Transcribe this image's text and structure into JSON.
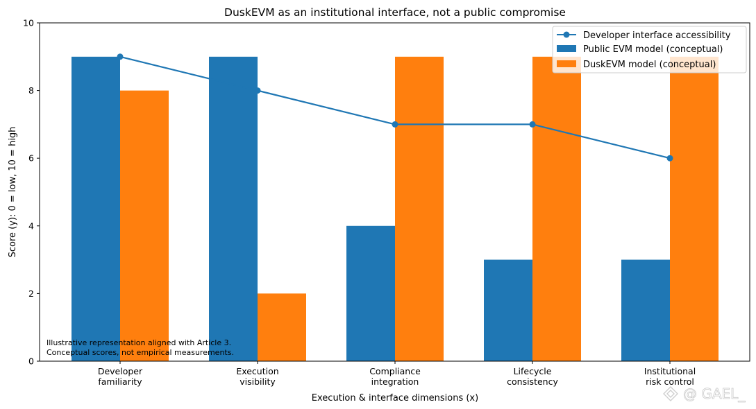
{
  "chart_data": {
    "type": "bar",
    "title": "DuskEVM as an institutional interface, not a public compromise",
    "xlabel": "Execution & interface dimensions (x)",
    "ylabel": "Score (y): 0 = low, 10 = high",
    "ylim": [
      0,
      10
    ],
    "yticks": [
      "0",
      "2",
      "4",
      "6",
      "8",
      "10"
    ],
    "categories": [
      [
        "Developer",
        "familiarity"
      ],
      [
        "Execution",
        "visibility"
      ],
      [
        "Compliance",
        "integration"
      ],
      [
        "Lifecycle",
        "consistency"
      ],
      [
        "Institutional",
        "risk control"
      ]
    ],
    "series": [
      {
        "name": "Public EVM model (conceptual)",
        "kind": "bar",
        "color": "#1f77b4",
        "values": [
          9,
          9,
          4,
          3,
          3
        ]
      },
      {
        "name": "DuskEVM model (conceptual)",
        "kind": "bar",
        "color": "#ff7f0e",
        "values": [
          8,
          2,
          9,
          9,
          9
        ]
      },
      {
        "name": "Developer interface accessibility",
        "kind": "line",
        "color": "#1f77b4",
        "values": [
          9,
          8,
          7,
          7,
          6
        ]
      }
    ],
    "legend": {
      "placement": "top-right",
      "entries": [
        "Developer interface accessibility",
        "Public EVM model (conceptual)",
        "DuskEVM model (conceptual)"
      ]
    },
    "grid": false,
    "annotation": [
      "Illustrative representation aligned with Article 3.",
      "Conceptual scores, not empirical measurements."
    ]
  },
  "watermark": {
    "text": "@ GAEL_",
    "icon": "diamond-logo-icon"
  }
}
